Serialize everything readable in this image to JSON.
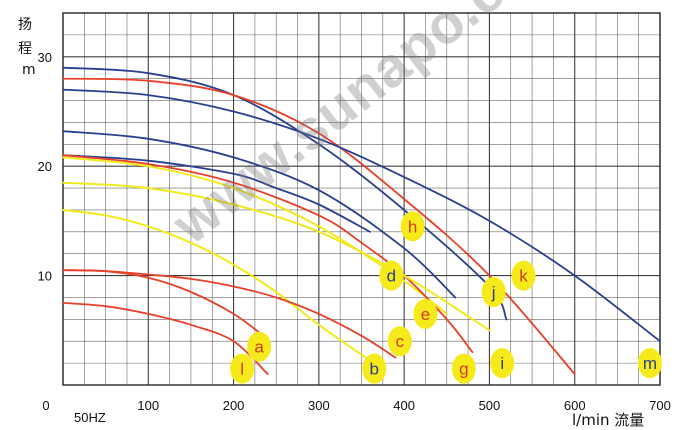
{
  "y_axis_label_chars": [
    "扬",
    "程",
    "m"
  ],
  "frequency_label": "50HZ",
  "x_axis_unit_label": "l/min 流量",
  "watermark_text": "www.sunapo.com",
  "chart_data": {
    "type": "line",
    "title": "",
    "xlabel": "l/min 流量",
    "ylabel": "扬程 m",
    "xlim": [
      0,
      700
    ],
    "ylim": [
      0,
      34
    ],
    "x_ticks": [
      0,
      100,
      200,
      300,
      400,
      500,
      600,
      700
    ],
    "y_ticks": [
      10,
      20,
      30
    ],
    "grid": true,
    "colors": {
      "red": "#e8402a",
      "blue": "#2a3f8f",
      "yellow": "#f3ea1c",
      "grid": "#2b2b2b",
      "label_bubble": "#f7ea1a",
      "label_text_red": "#d63a1a",
      "label_text_blue": "#2a3f8f"
    },
    "series": [
      {
        "name": "a",
        "color": "red",
        "x": [
          0,
          50,
          100,
          150,
          200,
          240
        ],
        "y": [
          7.5,
          7.2,
          6.5,
          5.5,
          4.0,
          1.0
        ]
      },
      {
        "name": "l",
        "color": "red",
        "x": [
          0,
          50,
          100,
          150,
          200,
          235
        ],
        "y": [
          10.5,
          10.4,
          9.8,
          8.5,
          6.5,
          4.5
        ]
      },
      {
        "name": "b",
        "color": "yellow",
        "x": [
          0,
          50,
          100,
          150,
          200,
          250,
          300,
          355
        ],
        "y": [
          16.0,
          15.5,
          14.5,
          13.0,
          11.0,
          8.5,
          5.5,
          2.5
        ]
      },
      {
        "name": "c",
        "color": "red",
        "x": [
          0,
          50,
          100,
          150,
          200,
          250,
          300,
          350,
          390
        ],
        "y": [
          10.5,
          10.4,
          10.1,
          9.7,
          9.0,
          8.0,
          6.5,
          4.5,
          2.5
        ]
      },
      {
        "name": "e",
        "color": "yellow",
        "x": [
          0,
          100,
          200,
          300,
          400,
          450
        ],
        "y": [
          20.8,
          20.0,
          18.0,
          14.5,
          9.5,
          6.5
        ]
      },
      {
        "name": "d",
        "color": "blue",
        "x": [
          0,
          100,
          200,
          250,
          300,
          360
        ],
        "y": [
          21.0,
          20.5,
          19.3,
          18.0,
          16.5,
          14.0
        ]
      },
      {
        "name": "g",
        "color": "red",
        "x": [
          0,
          100,
          200,
          300,
          350,
          400,
          450,
          480
        ],
        "y": [
          21.0,
          20.2,
          18.5,
          15.5,
          13.0,
          10.0,
          6.0,
          3.0
        ]
      },
      {
        "name": "h",
        "color": "blue",
        "x": [
          0,
          100,
          200,
          300,
          400,
          460
        ],
        "y": [
          23.2,
          22.5,
          20.8,
          17.8,
          12.5,
          8.0
        ]
      },
      {
        "name": "i",
        "color": "yellow",
        "x": [
          0,
          100,
          200,
          300,
          400,
          500
        ],
        "y": [
          18.5,
          18.0,
          16.5,
          14.0,
          10.0,
          5.0
        ]
      },
      {
        "name": "j",
        "color": "blue",
        "x": [
          0,
          100,
          200,
          300,
          400,
          500,
          520
        ],
        "y": [
          29.0,
          28.5,
          26.5,
          22.0,
          16.0,
          9.0,
          6.0
        ]
      },
      {
        "name": "k",
        "color": "red",
        "x": [
          0,
          100,
          200,
          300,
          400,
          500,
          600
        ],
        "y": [
          28.0,
          27.8,
          26.5,
          23.0,
          17.0,
          10.0,
          1.0
        ]
      },
      {
        "name": "m",
        "color": "blue",
        "x": [
          0,
          100,
          200,
          300,
          400,
          500,
          600,
          700
        ],
        "y": [
          27.0,
          26.5,
          25.0,
          22.5,
          19.0,
          15.0,
          10.0,
          4.0
        ]
      }
    ],
    "curve_labels": [
      {
        "text": "a",
        "x": 230,
        "y": 3.5,
        "text_color": "red"
      },
      {
        "text": "l",
        "x": 210,
        "y": 1.5,
        "text_color": "red"
      },
      {
        "text": "b",
        "x": 365,
        "y": 1.5,
        "text_color": "blue"
      },
      {
        "text": "c",
        "x": 395,
        "y": 4.0,
        "text_color": "red"
      },
      {
        "text": "d",
        "x": 385,
        "y": 10.0,
        "text_color": "blue"
      },
      {
        "text": "e",
        "x": 425,
        "y": 6.5,
        "text_color": "red"
      },
      {
        "text": "g",
        "x": 470,
        "y": 1.5,
        "text_color": "red"
      },
      {
        "text": "h",
        "x": 410,
        "y": 14.5,
        "text_color": "red"
      },
      {
        "text": "i",
        "x": 515,
        "y": 2.0,
        "text_color": "blue"
      },
      {
        "text": "j",
        "x": 505,
        "y": 8.5,
        "text_color": "blue"
      },
      {
        "text": "k",
        "x": 540,
        "y": 10.0,
        "text_color": "red"
      },
      {
        "text": "m",
        "x": 695,
        "y": 2.0,
        "text_color": "blue"
      }
    ]
  }
}
